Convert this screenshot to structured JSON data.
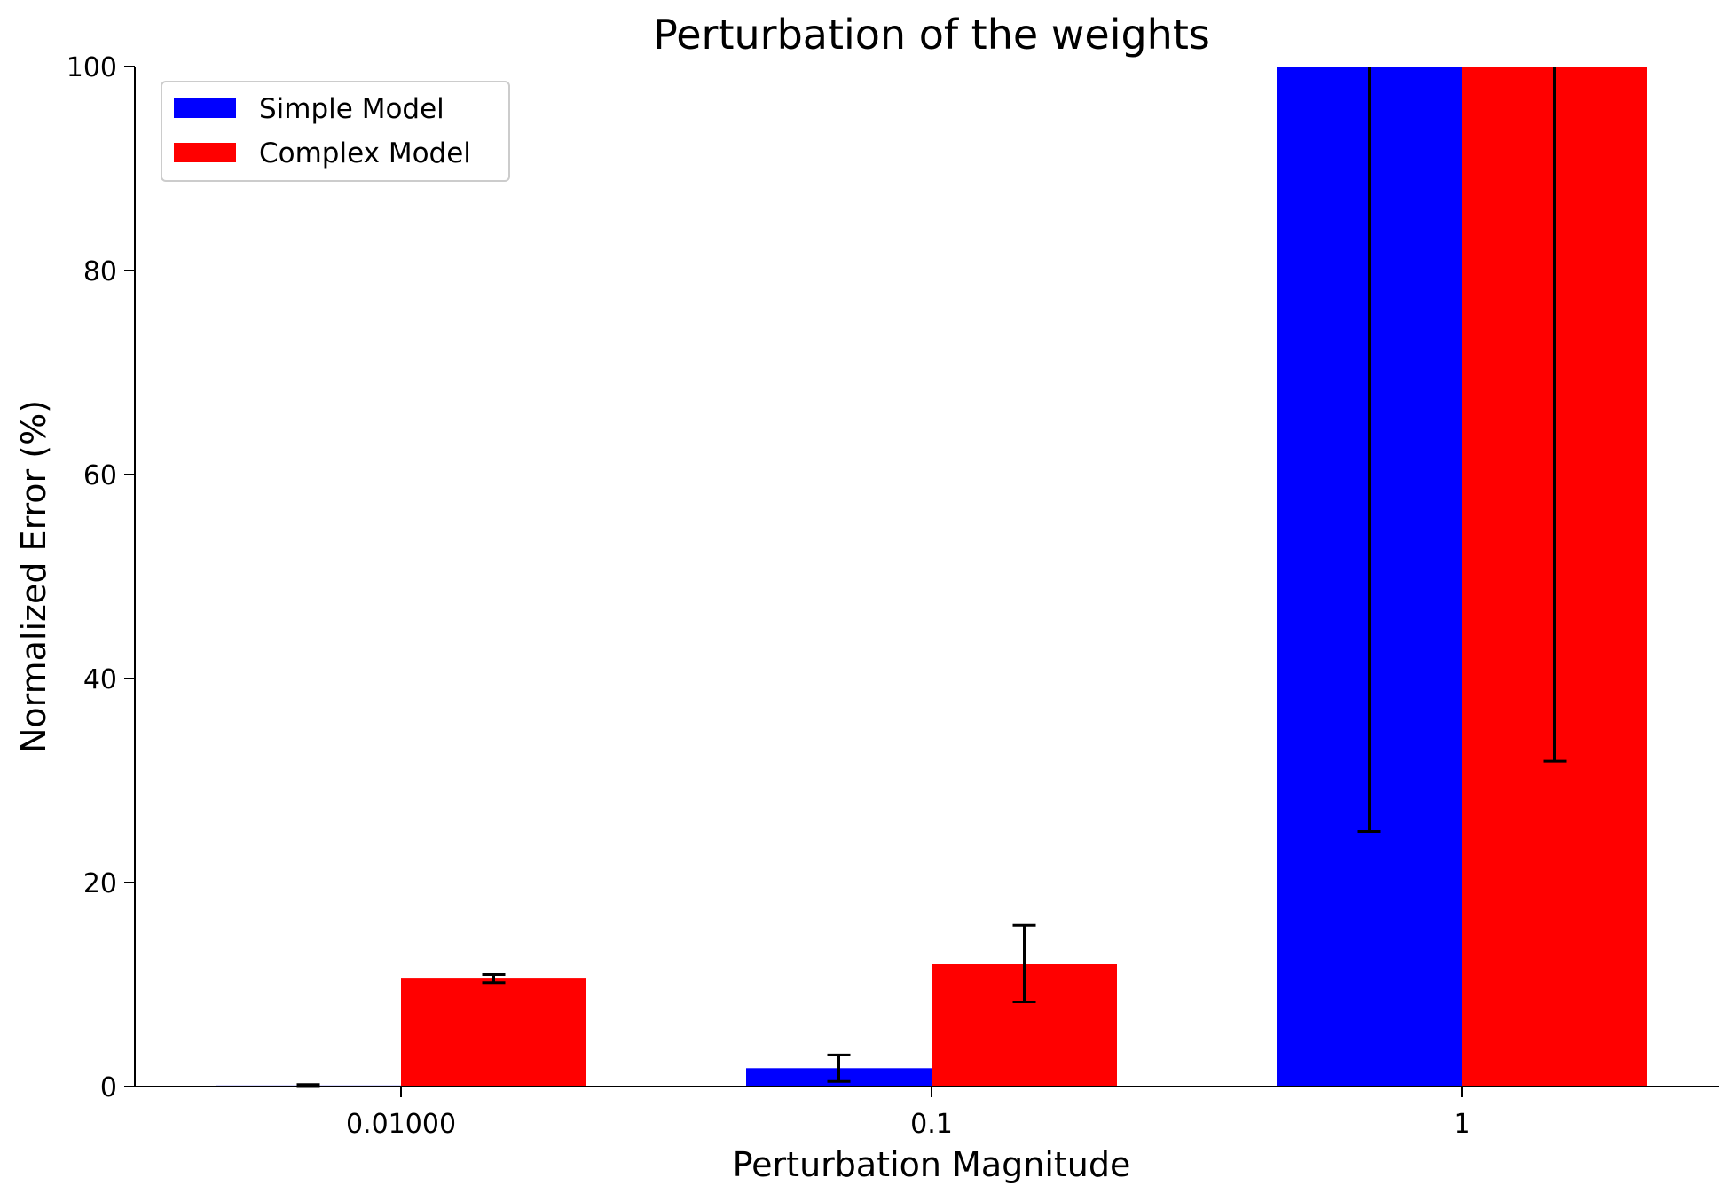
{
  "chart_data": {
    "type": "bar",
    "title": "Perturbation of the weights",
    "xlabel": "Perturbation Magnitude",
    "ylabel": "Normalized Error (%)",
    "categories": [
      "0.01000",
      "0.1",
      "1"
    ],
    "ylim": [
      0,
      100
    ],
    "yticks": [
      0,
      20,
      40,
      60,
      80,
      100
    ],
    "grid": false,
    "legend_position": "top-left",
    "series": [
      {
        "name": "Simple Model",
        "color": "#0000ff",
        "values": [
          0.1,
          1.8,
          100
        ],
        "error_low": [
          0.0,
          0.5,
          25.0
        ],
        "error_high": [
          0.2,
          3.1,
          100
        ]
      },
      {
        "name": "Complex Model",
        "color": "#ff0000",
        "values": [
          10.6,
          12.0,
          100
        ],
        "error_low": [
          10.2,
          8.3,
          31.9
        ],
        "error_high": [
          11.0,
          15.8,
          100
        ]
      }
    ]
  }
}
